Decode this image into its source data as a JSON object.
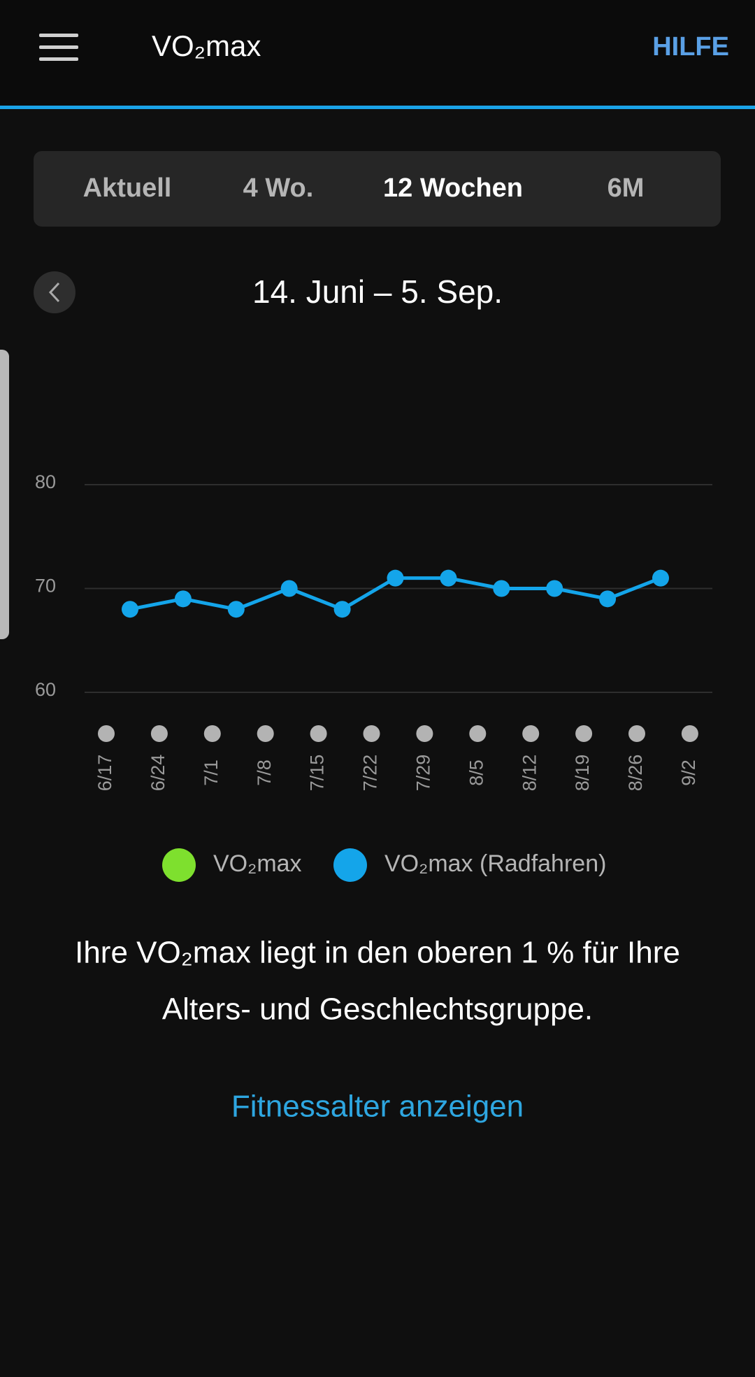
{
  "header": {
    "title": "VO₂max",
    "help": "HILFE"
  },
  "tabs": {
    "items": [
      "Aktuell",
      "4 Wo.",
      "12 Wochen",
      "6M"
    ],
    "selected": 2
  },
  "date_range": "14. Juni – 5. Sep.",
  "chart_data": {
    "type": "line",
    "categories": [
      "6/17",
      "6/24",
      "7/1",
      "7/8",
      "7/15",
      "7/22",
      "7/29",
      "8/5",
      "8/12",
      "8/19",
      "8/26",
      "9/2"
    ],
    "series": [
      {
        "name": "VO₂max",
        "color": "#7ee02e",
        "values": [
          null,
          null,
          null,
          null,
          null,
          null,
          null,
          null,
          null,
          null,
          null,
          null
        ]
      },
      {
        "name": "VO₂max (Radfahren)",
        "color": "#14a5ea",
        "values": [
          68,
          69,
          68,
          70,
          68,
          71,
          71,
          70,
          70,
          69,
          71,
          null
        ]
      }
    ],
    "ylim": [
      60,
      80
    ],
    "yticks": [
      60,
      70,
      80
    ],
    "grid": true
  },
  "message": [
    "Ihre VO₂max liegt in den oberen 1 % für Ihre",
    "Alters- und Geschlechtsgruppe."
  ],
  "link": "Fitnessalter anzeigen"
}
